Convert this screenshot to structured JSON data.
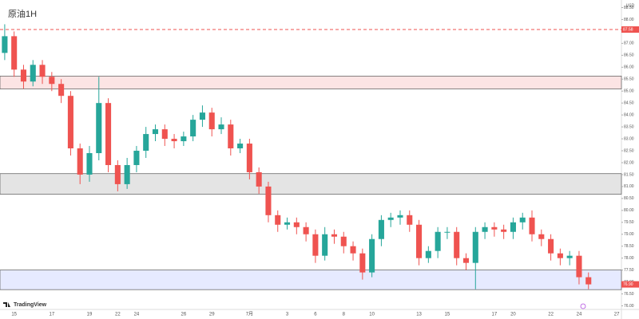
{
  "chart_data": {
    "type": "candlestick",
    "title": "原油1H",
    "brand": "TradingView",
    "currency": "USD",
    "categories": [
      null,
      "15",
      null,
      null,
      null,
      "17",
      null,
      null,
      null,
      "19",
      null,
      null,
      "22",
      null,
      "24",
      null,
      null,
      null,
      null,
      "26",
      null,
      null,
      "29",
      null,
      null,
      null,
      "7月",
      null,
      null,
      null,
      "3",
      null,
      null,
      "6",
      null,
      null,
      "8",
      null,
      null,
      "10",
      null,
      null,
      null,
      null,
      "13",
      null,
      null,
      "15",
      null,
      null,
      null,
      null,
      "17",
      null,
      "20",
      null,
      null,
      null,
      "22",
      null,
      null,
      "24",
      null,
      null,
      null,
      "27"
    ],
    "open": [
      86.6,
      87.3,
      85.9,
      85.4,
      86.1,
      85.6,
      85.3,
      84.8,
      82.6,
      81.5,
      82.4,
      84.5,
      81.9,
      81.1,
      81.9,
      82.5,
      83.2,
      83.4,
      83.0,
      82.9,
      83.1,
      83.8,
      84.1,
      83.4,
      83.6,
      82.6,
      82.8,
      81.6,
      81.0,
      79.8,
      79.4,
      79.5,
      79.3,
      79.0,
      78.1,
      79.0,
      78.9,
      78.5,
      78.2,
      77.4,
      78.8,
      79.6,
      79.7,
      79.8,
      79.4,
      78.0,
      78.3,
      79.1,
      79.1,
      78.0,
      77.8,
      79.1,
      79.3,
      79.2,
      79.1,
      79.5,
      79.7,
      79.0,
      78.8,
      78.2,
      78.0,
      78.1,
      77.2,
      null,
      null,
      null
    ],
    "high": [
      87.8,
      87.5,
      86.1,
      86.3,
      86.3,
      85.8,
      85.5,
      85.0,
      82.8,
      82.7,
      85.6,
      84.7,
      82.1,
      82.2,
      82.7,
      83.5,
      83.6,
      83.6,
      83.2,
      83.3,
      84.0,
      84.4,
      84.3,
      83.9,
      83.8,
      83.0,
      83.0,
      81.8,
      81.2,
      80.0,
      79.7,
      79.7,
      79.5,
      79.2,
      79.3,
      79.2,
      79.1,
      78.7,
      78.4,
      79.0,
      79.8,
      79.9,
      80.0,
      80.0,
      79.6,
      78.5,
      79.3,
      79.3,
      79.3,
      78.2,
      79.3,
      79.5,
      79.5,
      79.4,
      79.7,
      79.9,
      80.0,
      79.2,
      79.0,
      78.4,
      78.3,
      78.3,
      77.4,
      null,
      null,
      null
    ],
    "low": [
      86.3,
      85.6,
      85.1,
      85.2,
      85.3,
      85.0,
      84.5,
      82.3,
      81.1,
      81.2,
      82.1,
      81.6,
      80.8,
      80.9,
      81.6,
      82.2,
      82.9,
      82.7,
      82.6,
      82.7,
      82.9,
      83.5,
      83.1,
      83.2,
      82.3,
      82.4,
      81.3,
      80.7,
      79.5,
      79.1,
      79.2,
      79.0,
      78.7,
      77.8,
      77.9,
      78.6,
      78.2,
      77.9,
      77.1,
      77.2,
      78.5,
      79.3,
      79.4,
      79.1,
      77.7,
      77.8,
      78.0,
      78.8,
      77.7,
      77.5,
      76.7,
      78.8,
      78.9,
      78.8,
      78.8,
      79.2,
      78.7,
      78.5,
      77.9,
      77.7,
      77.7,
      76.9,
      76.7,
      null,
      null,
      null
    ],
    "close": [
      87.3,
      85.9,
      85.4,
      86.1,
      85.6,
      85.3,
      84.8,
      82.6,
      81.5,
      82.4,
      84.5,
      81.9,
      81.1,
      81.9,
      82.5,
      83.2,
      83.4,
      83.0,
      82.9,
      83.1,
      83.8,
      84.1,
      83.4,
      83.6,
      82.6,
      82.8,
      81.6,
      81.0,
      79.8,
      79.4,
      79.5,
      79.3,
      79.0,
      78.1,
      79.0,
      78.9,
      78.5,
      78.2,
      77.4,
      78.8,
      79.6,
      79.7,
      79.8,
      79.4,
      78.0,
      78.3,
      79.1,
      79.1,
      78.0,
      77.8,
      79.1,
      79.3,
      79.2,
      79.1,
      79.5,
      79.7,
      79.0,
      78.8,
      78.2,
      78.0,
      78.1,
      77.2,
      76.9,
      null,
      null,
      null
    ],
    "up_color": "#26a69a",
    "down_color": "#ef5350",
    "ylim": [
      75.85,
      88.65
    ],
    "yticks": [
      {
        "value": 76,
        "label": "76.00"
      },
      {
        "value": 76.5,
        "label": "76.50"
      },
      {
        "value": 77,
        "label": "77.00"
      },
      {
        "value": 77.5,
        "label": "77.50"
      },
      {
        "value": 78,
        "label": "78.00"
      },
      {
        "value": 78.5,
        "label": "78.50"
      },
      {
        "value": 79,
        "label": "79.00"
      },
      {
        "value": 79.5,
        "label": "79.50"
      },
      {
        "value": 80,
        "label": "80.00"
      },
      {
        "value": 80.5,
        "label": "80.50"
      },
      {
        "value": 81,
        "label": "81.00"
      },
      {
        "value": 81.5,
        "label": "81.50"
      },
      {
        "value": 82,
        "label": "82.00"
      },
      {
        "value": 82.5,
        "label": "82.50"
      },
      {
        "value": 83,
        "label": "83.00"
      },
      {
        "value": 83.5,
        "label": "83.50"
      },
      {
        "value": 84,
        "label": "84.00"
      },
      {
        "value": 84.5,
        "label": "84.50"
      },
      {
        "value": 85,
        "label": "85.00"
      },
      {
        "value": 85.5,
        "label": "85.50"
      },
      {
        "value": 86,
        "label": "86.00"
      },
      {
        "value": 86.5,
        "label": "86.50"
      },
      {
        "value": 87,
        "label": "87.00"
      },
      {
        "value": 87.5,
        "label": "87.50"
      },
      {
        "value": 88,
        "label": "88.00"
      },
      {
        "value": 88.5,
        "label": "88.50"
      }
    ],
    "zones": [
      {
        "from": 85.09,
        "to": 85.63,
        "color": "#fce4e4"
      },
      {
        "from": 80.68,
        "to": 81.54,
        "color": "#e4e4e4"
      },
      {
        "from": 76.68,
        "to": 77.5,
        "color": "#e6eaff"
      }
    ],
    "level": {
      "value": 87.58,
      "label": "87.58",
      "color": "#ef5350"
    },
    "price_label": {
      "value": 76.9,
      "label": "76.90",
      "color": "#ef5350"
    }
  }
}
